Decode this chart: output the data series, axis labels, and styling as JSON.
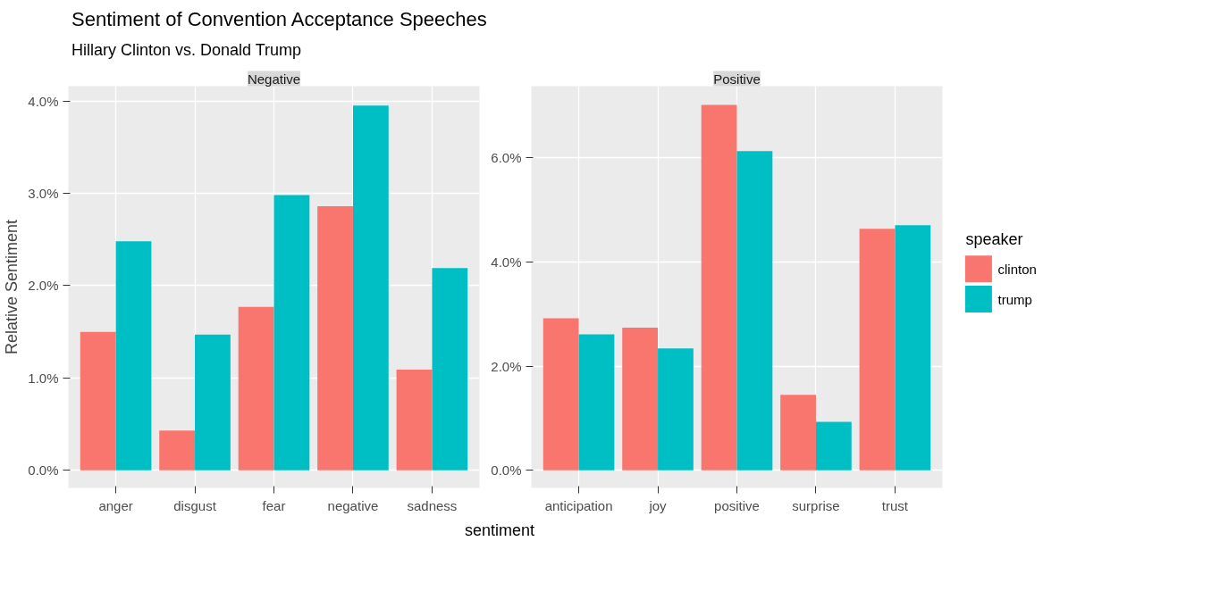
{
  "chart_data": [
    {
      "type": "bar",
      "title": "Sentiment of Convention Acceptance Speeches",
      "subtitle": "Hillary Clinton vs. Donald Trump",
      "ylabel": "Relative Sentiment",
      "xlabel": "sentiment",
      "annotations": [
        "Negative"
      ],
      "categories": [
        "anger",
        "disgust",
        "fear",
        "negative",
        "sadness"
      ],
      "series": [
        {
          "name": "clinton",
          "color": "#f8766d",
          "values": [
            1.5,
            0.43,
            1.77,
            2.86,
            1.09
          ]
        },
        {
          "name": "trump",
          "color": "#00bfc4",
          "values": [
            2.48,
            1.47,
            2.98,
            3.95,
            2.19
          ]
        }
      ],
      "legend": "right",
      "legend_title": "speaker",
      "ylim": [
        -0.19,
        4.16
      ],
      "yticks": [
        {
          "value": 0,
          "label": "0.0%"
        },
        {
          "value": 1,
          "label": "1.0%"
        },
        {
          "value": 2,
          "label": "2.0%"
        },
        {
          "value": 3,
          "label": "3.0%"
        },
        {
          "value": 4,
          "label": "4.0%"
        }
      ],
      "grid": true
    },
    {
      "type": "bar",
      "annotations": [
        "Positive"
      ],
      "categories": [
        "anticipation",
        "joy",
        "positive",
        "surprise",
        "trust"
      ],
      "series": [
        {
          "color": "#f8766d",
          "values": [
            2.92,
            2.74,
            7.02,
            1.45,
            4.64
          ]
        },
        {
          "color": "#00bfc4",
          "values": [
            2.61,
            2.34,
            6.13,
            0.93,
            4.71
          ]
        }
      ],
      "ylim": [
        -0.34,
        7.38
      ],
      "yticks": [
        {
          "value": 0,
          "label": "0.0%"
        },
        {
          "value": 2,
          "label": "2.0%"
        },
        {
          "value": 4,
          "label": "4.0%"
        },
        {
          "value": 6,
          "label": "6.0%"
        }
      ],
      "grid": true
    }
  ]
}
